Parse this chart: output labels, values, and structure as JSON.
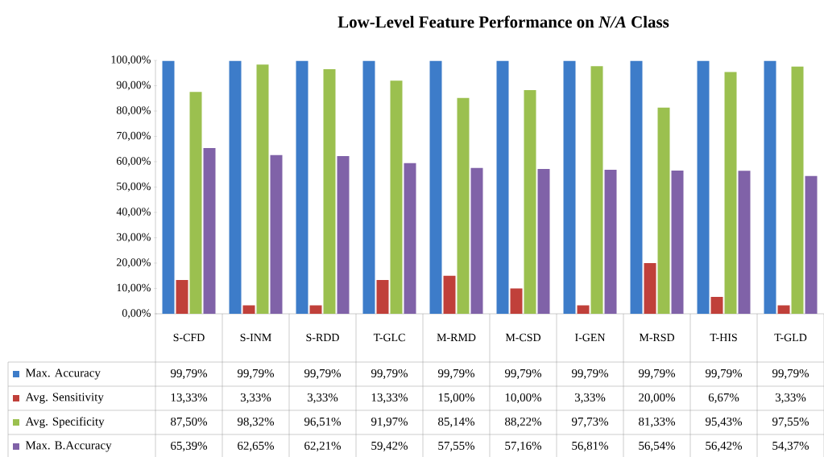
{
  "chart_data": {
    "type": "bar",
    "title": "Low-Level Feature Performance on *N/A* Class",
    "categories": [
      "S-CFD",
      "S-INM",
      "S-RDD",
      "T-GLC",
      "M-RMD",
      "M-CSD",
      "I-GEN",
      "M-RSD",
      "T-HIS",
      "T-GLD"
    ],
    "series": [
      {
        "name": "Max. Accuracy",
        "color": "#3d7cc9",
        "values": [
          99.79,
          99.79,
          99.79,
          99.79,
          99.79,
          99.79,
          99.79,
          99.79,
          99.79,
          99.79
        ],
        "value_labels": [
          "99,79%",
          "99,79%",
          "99,79%",
          "99,79%",
          "99,79%",
          "99,79%",
          "99,79%",
          "99,79%",
          "99,79%",
          "99,79%"
        ]
      },
      {
        "name": "Avg. Sensitivity",
        "color": "#c0403a",
        "values": [
          13.33,
          3.33,
          3.33,
          13.33,
          15.0,
          10.0,
          3.33,
          20.0,
          6.67,
          3.33
        ],
        "value_labels": [
          "13,33%",
          "3,33%",
          "3,33%",
          "13,33%",
          "15,00%",
          "10,00%",
          "3,33%",
          "20,00%",
          "6,67%",
          "3,33%"
        ]
      },
      {
        "name": "Avg. Specificity",
        "color": "#9bc04f",
        "values": [
          87.5,
          98.32,
          96.51,
          91.97,
          85.14,
          88.22,
          97.73,
          81.33,
          95.43,
          97.55
        ],
        "value_labels": [
          "87,50%",
          "98,32%",
          "96,51%",
          "91,97%",
          "85,14%",
          "88,22%",
          "97,73%",
          "81,33%",
          "95,43%",
          "97,55%"
        ]
      },
      {
        "name": "Max. B.Accuracy",
        "color": "#8062a8",
        "values": [
          65.39,
          62.65,
          62.21,
          59.42,
          57.55,
          57.16,
          56.81,
          56.54,
          56.42,
          54.37
        ],
        "value_labels": [
          "65,39%",
          "62,65%",
          "62,21%",
          "59,42%",
          "57,55%",
          "57,16%",
          "56,81%",
          "56,54%",
          "56,42%",
          "54,37%"
        ]
      }
    ],
    "legend": "bottom",
    "ylim": [
      0,
      100
    ],
    "yticks": [
      {
        "value": 0,
        "label": "0,00%"
      },
      {
        "value": 10,
        "label": "10,00%"
      },
      {
        "value": 20,
        "label": "20,00%"
      },
      {
        "value": 30,
        "label": "30,00%"
      },
      {
        "value": 40,
        "label": "40,00%"
      },
      {
        "value": 50,
        "label": "50,00%"
      },
      {
        "value": 60,
        "label": "60,00%"
      },
      {
        "value": 70,
        "label": "70,00%"
      },
      {
        "value": 80,
        "label": "80,00%"
      },
      {
        "value": 90,
        "label": "90,00%"
      },
      {
        "value": 100,
        "label": "100,00%"
      }
    ]
  }
}
